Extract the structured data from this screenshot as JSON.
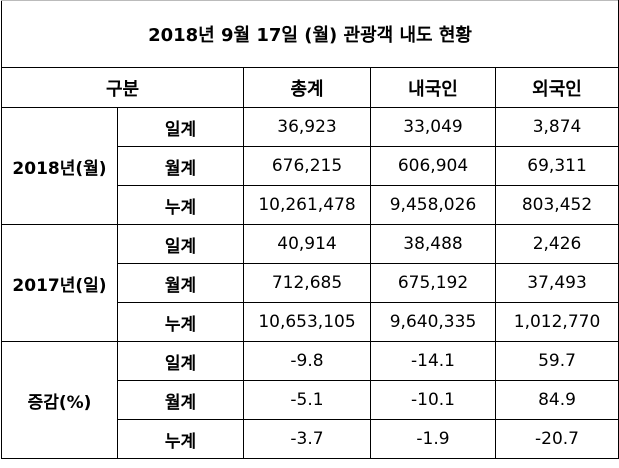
{
  "title": "2018년 9월 17일 (월) 관광객 내도 현황",
  "headers": {
    "category": "구분",
    "total": "총계",
    "domestic": "내국인",
    "foreign": "외국인"
  },
  "groups": [
    {
      "label": "2018년(월)",
      "rows": [
        {
          "label": "일계",
          "total": "36,923",
          "domestic": "33,049",
          "foreign": "3,874"
        },
        {
          "label": "월계",
          "total": "676,215",
          "domestic": "606,904",
          "foreign": "69,311"
        },
        {
          "label": "누계",
          "total": "10,261,478",
          "domestic": "9,458,026",
          "foreign": "803,452"
        }
      ]
    },
    {
      "label": "2017년(일)",
      "rows": [
        {
          "label": "일계",
          "total": "40,914",
          "domestic": "38,488",
          "foreign": "2,426"
        },
        {
          "label": "월계",
          "total": "712,685",
          "domestic": "675,192",
          "foreign": "37,493"
        },
        {
          "label": "누계",
          "total": "10,653,105",
          "domestic": "9,640,335",
          "foreign": "1,012,770"
        }
      ]
    },
    {
      "label": "증감(%)",
      "rows": [
        {
          "label": "일계",
          "total": "-9.8",
          "domestic": "-14.1",
          "foreign": "59.7"
        },
        {
          "label": "월계",
          "total": "-5.1",
          "domestic": "-10.1",
          "foreign": "84.9"
        },
        {
          "label": "누계",
          "total": "-3.7",
          "domestic": "-1.9",
          "foreign": "-20.7"
        }
      ]
    }
  ]
}
